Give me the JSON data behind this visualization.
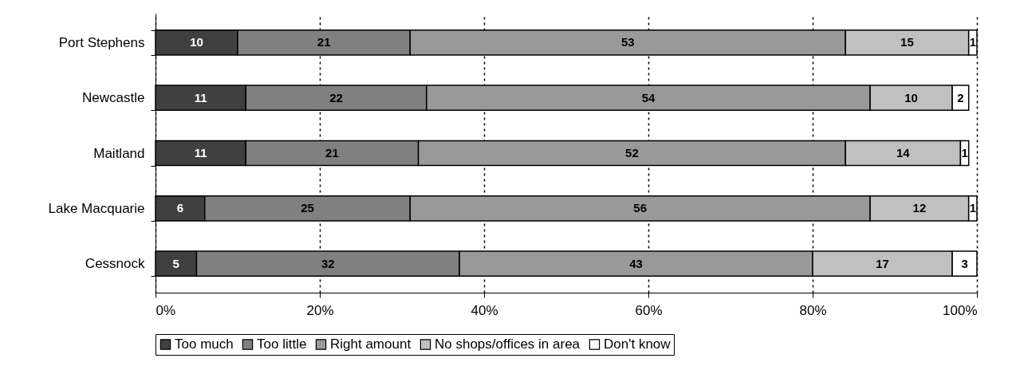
{
  "chart_data": {
    "type": "bar",
    "orientation": "horizontal",
    "stacked": true,
    "data_labels": true,
    "grid": "x",
    "legend": "bottom",
    "categories": [
      "Port Stephens",
      "Newcastle",
      "Maitland",
      "Lake Macquarie",
      "Cessnock"
    ],
    "series": [
      {
        "name": "Too much",
        "color": "#404040",
        "values": [
          10,
          11,
          11,
          6,
          5
        ]
      },
      {
        "name": "Too little",
        "color": "#808080",
        "values": [
          21,
          22,
          21,
          25,
          32
        ]
      },
      {
        "name": "Right amount",
        "color": "#999999",
        "values": [
          53,
          54,
          52,
          56,
          43
        ]
      },
      {
        "name": "No shops/offices in area",
        "color": "#c0c0c0",
        "values": [
          15,
          10,
          14,
          12,
          17
        ]
      },
      {
        "name": "Don't know",
        "color": "#ffffff",
        "values": [
          1,
          2,
          1,
          1,
          3
        ]
      }
    ],
    "xlim": [
      0,
      100
    ],
    "xticks": [
      {
        "value": 0,
        "label": "0%"
      },
      {
        "value": 20,
        "label": "20%"
      },
      {
        "value": 40,
        "label": "40%"
      },
      {
        "value": 60,
        "label": "60%"
      },
      {
        "value": 80,
        "label": "80%"
      },
      {
        "value": 100,
        "label": "100%"
      }
    ]
  }
}
